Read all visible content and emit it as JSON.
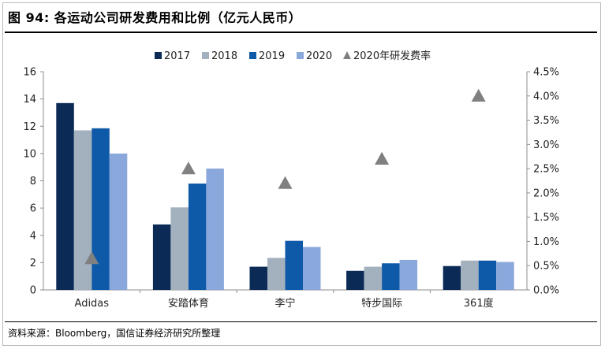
{
  "title": "图 94:  各运动公司研发费用和比例（亿元人民币）",
  "source": "资料来源：Bloomberg，国信证券经济研究所整理",
  "chart_data": {
    "type": "bar",
    "categories": [
      "Adidas",
      "安踏体育",
      "李宁",
      "特步国际",
      "361度"
    ],
    "series": [
      {
        "name": "2017",
        "color": "#0b2a56",
        "values": [
          13.7,
          4.8,
          1.7,
          1.4,
          1.75
        ]
      },
      {
        "name": "2018",
        "color": "#a3b1bf",
        "values": [
          11.7,
          6.05,
          2.35,
          1.7,
          2.15
        ]
      },
      {
        "name": "2019",
        "color": "#0f5aa8",
        "values": [
          11.85,
          7.8,
          3.6,
          1.95,
          2.15
        ]
      },
      {
        "name": "2020",
        "color": "#8aa8dc",
        "values": [
          10.0,
          8.9,
          3.15,
          2.2,
          2.05
        ]
      }
    ],
    "ratio_series": {
      "name": "2020年研发费率",
      "type": "scatter",
      "marker": "triangle",
      "color": "#808080",
      "values": [
        0.0065,
        0.025,
        0.022,
        0.027,
        0.04
      ]
    },
    "ylim": [
      0,
      16
    ],
    "yticks": [
      "0",
      "2",
      "4",
      "6",
      "8",
      "10",
      "12",
      "14",
      "16"
    ],
    "y2lim": [
      0,
      0.045
    ],
    "y2ticks": [
      "0.0%",
      "0.5%",
      "1.0%",
      "1.5%",
      "2.0%",
      "2.5%",
      "3.0%",
      "3.5%",
      "4.0%",
      "4.5%"
    ],
    "legend_position": "top"
  }
}
